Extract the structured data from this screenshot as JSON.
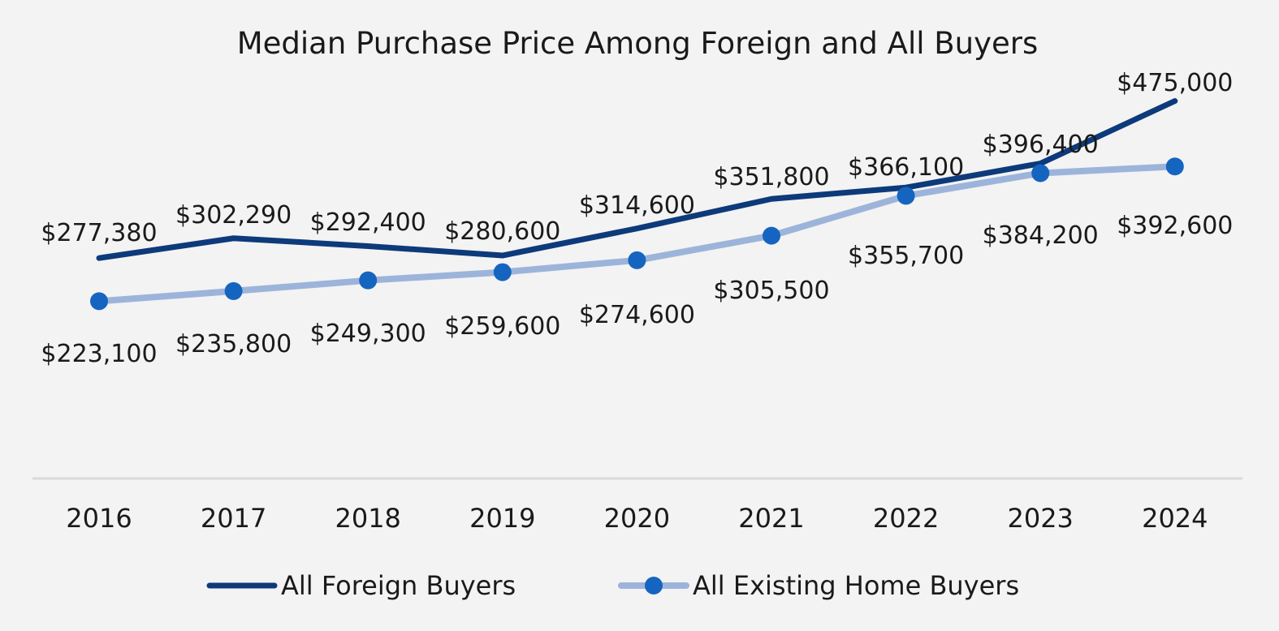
{
  "chart_data": {
    "type": "line",
    "title": "Median Purchase Price Among Foreign and All Buyers",
    "xlabel": "",
    "ylabel": "",
    "categories": [
      "2016",
      "2017",
      "2018",
      "2019",
      "2020",
      "2021",
      "2022",
      "2023",
      "2024"
    ],
    "ylim": [
      0,
      500000
    ],
    "grid": false,
    "legend_position": "bottom",
    "series": [
      {
        "name": "All Foreign Buyers",
        "values": [
          277380,
          302290,
          292400,
          280600,
          314600,
          351800,
          366100,
          396400,
          475000
        ],
        "labels": [
          "$277,380",
          "$302,290",
          "$292,400",
          "$280,600",
          "$314,600",
          "$351,800",
          "$366,100",
          "$396,400",
          "$475,000"
        ],
        "color": "#0d3a7a",
        "markers": false
      },
      {
        "name": "All Existing Home Buyers",
        "values": [
          223100,
          235800,
          249300,
          259600,
          274600,
          305500,
          355700,
          384200,
          392600
        ],
        "labels": [
          "$223,100",
          "$235,800",
          "$249,300",
          "$259,600",
          "$274,600",
          "$305,500",
          "$355,700",
          "$384,200",
          "$392,600"
        ],
        "color": "#9db4da",
        "marker_color": "#1565c0",
        "markers": true
      }
    ]
  }
}
